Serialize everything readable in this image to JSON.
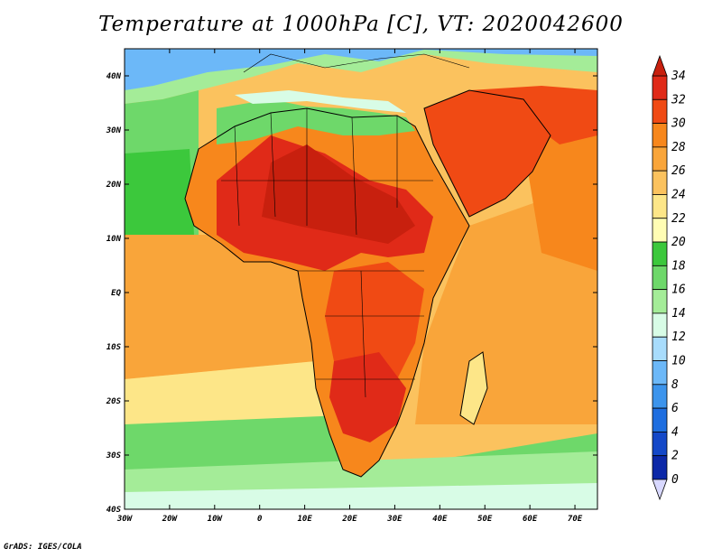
{
  "title": "Temperature at 1000hPa [C], VT: 2020042600",
  "credit": "GrADS: IGES/COLA",
  "map": {
    "lon_ticks": [
      "30W",
      "20W",
      "10W",
      "0",
      "10E",
      "20E",
      "30E",
      "40E",
      "50E",
      "60E",
      "70E"
    ],
    "lat_ticks": [
      "40N",
      "30N",
      "20N",
      "10N",
      "EQ",
      "10S",
      "20S",
      "30S",
      "40S"
    ],
    "lon_range": [
      -30,
      75
    ],
    "lat_range": [
      -40,
      45
    ],
    "variable": "Temperature at 1000hPa",
    "units": "C"
  },
  "colorbar": {
    "labels": [
      "34",
      "32",
      "30",
      "28",
      "26",
      "24",
      "22",
      "20",
      "18",
      "16",
      "14",
      "12",
      "10",
      "8",
      "6",
      "4",
      "2",
      "0"
    ],
    "colors": [
      "#e02a18",
      "#f04a14",
      "#f7871c",
      "#f9a53a",
      "#fbc25e",
      "#fde688",
      "#fffdb4",
      "#3cc83c",
      "#6ed86a",
      "#a4ec98",
      "#d8fce6",
      "#a8dcfc",
      "#6cb8f8",
      "#3c94ec",
      "#1e6ee0",
      "#1448c8",
      "#0c28a8",
      "#061070"
    ],
    "over_color": "#c8200e",
    "under_color": "#d8d8ff"
  }
}
